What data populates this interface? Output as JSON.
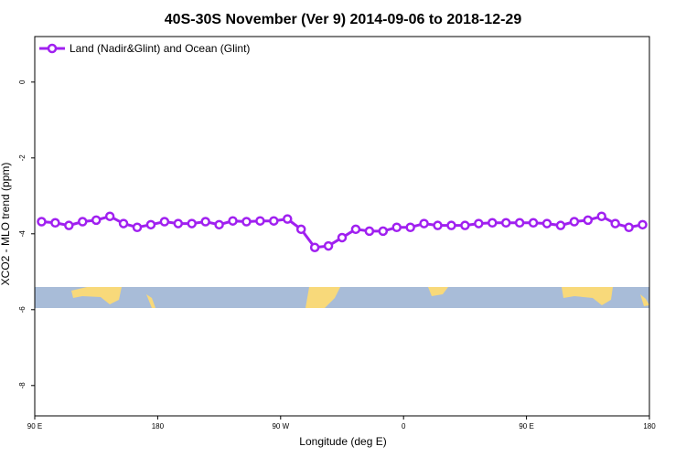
{
  "chart_data": {
    "type": "line",
    "title": "40S-30S November (Ver 9)   2014-09-06 to 2018-12-29",
    "x_label": "Longitude (deg E)",
    "y_label": "XCO2 - MLO trend (ppm)",
    "x": [
      95,
      105,
      115,
      125,
      135,
      145,
      155,
      165,
      175,
      185,
      195,
      205,
      215,
      225,
      235,
      245,
      255,
      265,
      275,
      285,
      295,
      305,
      315,
      325,
      335,
      345,
      355,
      365,
      375,
      385,
      395,
      405,
      415,
      425,
      435,
      445,
      455,
      465,
      475,
      485,
      495,
      505,
      515,
      525,
      535
    ],
    "series": [
      {
        "name": "Land (Nadir&Glint) and Ocean (Glint)",
        "color": "#a020f0",
        "values": [
          -3.68,
          -3.71,
          -3.78,
          -3.68,
          -3.64,
          -3.54,
          -3.73,
          -3.83,
          -3.76,
          -3.68,
          -3.73,
          -3.73,
          -3.68,
          -3.76,
          -3.66,
          -3.68,
          -3.66,
          -3.66,
          -3.61,
          -3.88,
          -4.36,
          -4.32,
          -4.1,
          -3.88,
          -3.93,
          -3.93,
          -3.83,
          -3.83,
          -3.73,
          -3.78,
          -3.78,
          -3.78,
          -3.73,
          -3.71,
          -3.71,
          -3.71,
          -3.71,
          -3.73,
          -3.78,
          -3.68,
          -3.64,
          -3.54,
          -3.73,
          -3.83,
          -3.76
        ]
      }
    ],
    "xlim": [
      90,
      540
    ],
    "xticks": [
      {
        "value": 90,
        "label": "90 E"
      },
      {
        "value": 180,
        "label": "180"
      },
      {
        "value": 270,
        "label": "90 W"
      },
      {
        "value": 360,
        "label": "0"
      },
      {
        "value": 450,
        "label": "90 E"
      },
      {
        "value": 540,
        "label": "180"
      }
    ],
    "ylim": [
      -8.8,
      1.2
    ],
    "yticks": [
      0,
      -2,
      -4,
      -6,
      -8
    ],
    "legend": "upper left"
  }
}
